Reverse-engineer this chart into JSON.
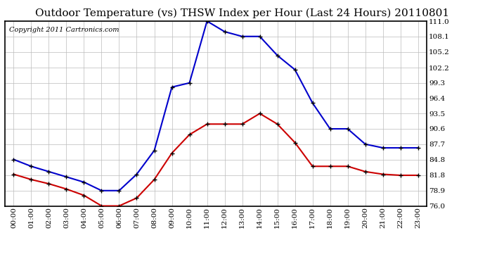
{
  "title": "Outdoor Temperature (vs) THSW Index per Hour (Last 24 Hours) 20110801",
  "copyright": "Copyright 2011 Cartronics.com",
  "hours": [
    "00:00",
    "01:00",
    "02:00",
    "03:00",
    "04:00",
    "05:00",
    "06:00",
    "07:00",
    "08:00",
    "09:00",
    "10:00",
    "11:00",
    "12:00",
    "13:00",
    "14:00",
    "15:00",
    "16:00",
    "17:00",
    "18:00",
    "19:00",
    "20:00",
    "21:00",
    "22:00",
    "23:00"
  ],
  "thsw": [
    84.8,
    83.5,
    82.5,
    81.5,
    80.5,
    78.9,
    78.9,
    82.0,
    86.5,
    98.5,
    99.3,
    111.0,
    109.0,
    108.1,
    108.1,
    104.5,
    101.8,
    95.5,
    90.6,
    90.6,
    87.7,
    87.0,
    87.0,
    87.0
  ],
  "outdoor_temp": [
    82.0,
    81.0,
    80.2,
    79.2,
    78.0,
    76.0,
    76.0,
    77.5,
    81.0,
    86.0,
    89.5,
    91.5,
    91.5,
    91.5,
    93.5,
    91.5,
    88.0,
    83.5,
    83.5,
    83.5,
    82.5,
    82.0,
    81.8,
    81.8
  ],
  "thsw_color": "#0000cc",
  "temp_color": "#cc0000",
  "bg_color": "#ffffff",
  "grid_color": "#bbbbbb",
  "title_fontsize": 11,
  "copyright_fontsize": 7,
  "ylim": [
    76.0,
    111.0
  ],
  "yticks": [
    76.0,
    78.9,
    81.8,
    84.8,
    87.7,
    90.6,
    93.5,
    96.4,
    99.3,
    102.2,
    105.2,
    108.1,
    111.0
  ],
  "ytick_labels": [
    "76.0",
    "78.9",
    "81.8",
    "84.8",
    "87.7",
    "90.6",
    "93.5",
    "96.4",
    "99.3",
    "102.2",
    "105.2",
    "108.1",
    "111.0"
  ],
  "marker": "+",
  "marker_size": 5,
  "line_width": 1.5,
  "marker_color": "#000000"
}
